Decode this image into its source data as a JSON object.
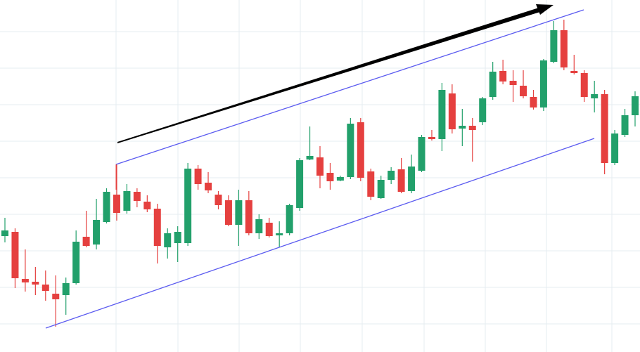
{
  "chart_data": {
    "type": "candlestick",
    "up_color": "#22a06b",
    "down_color": "#e5403f",
    "ylim": [
      0,
      501
    ],
    "yticks": [
      40,
      92,
      144,
      196,
      248,
      300,
      352,
      404,
      456
    ],
    "grid": true,
    "open": [
      165,
      171,
      104,
      100,
      96,
      83,
      81,
      98,
      164,
      153,
      185,
      224,
      201,
      228,
      214,
      204,
      149,
      155,
      155,
      261,
      241,
      224,
      216,
      181,
      216,
      169,
      184,
      166,
      169,
      205,
      274,
      277,
      255,
      244,
      249,
      327,
      257,
      219,
      245,
      260,
      229,
      258,
      306,
      303,
      368,
      318,
      322,
      327,
      363,
      400,
      386,
      379,
      363,
      348,
      413,
      458,
      400,
      397,
      361,
      367,
      269,
      309,
      337
    ],
    "high": [
      191,
      176,
      146,
      121,
      116,
      109,
      106,
      173,
      201,
      218,
      233,
      267,
      239,
      233,
      223,
      211,
      176,
      179,
      269,
      266,
      256,
      229,
      223,
      231,
      229,
      196,
      191,
      186,
      211,
      276,
      321,
      293,
      269,
      251,
      333,
      333,
      261,
      251,
      263,
      276,
      281,
      309,
      316,
      383,
      381,
      346,
      333,
      363,
      413,
      416,
      401,
      401,
      373,
      417,
      471,
      473,
      423,
      401,
      386,
      373,
      316,
      346,
      371
    ],
    "low": [
      156,
      91,
      86,
      81,
      73,
      36,
      53,
      96,
      149,
      146,
      183,
      187,
      197,
      206,
      199,
      126,
      133,
      128,
      151,
      231,
      226,
      203,
      179,
      151,
      166,
      161,
      163,
      149,
      166,
      201,
      273,
      233,
      231,
      243,
      246,
      243,
      216,
      218,
      239,
      226,
      226,
      256,
      301,
      286,
      311,
      293,
      271,
      323,
      359,
      381,
      356,
      361,
      345,
      343,
      411,
      401,
      395,
      356,
      341,
      253,
      266,
      306,
      321
    ],
    "close": [
      173,
      105,
      99,
      96,
      87,
      75,
      98,
      157,
      151,
      188,
      228,
      198,
      229,
      215,
      203,
      151,
      169,
      171,
      261,
      239,
      230,
      209,
      181,
      216,
      169,
      189,
      165,
      169,
      209,
      273,
      279,
      251,
      243,
      249,
      325,
      248,
      221,
      245,
      258,
      228,
      264,
      306,
      303,
      373,
      317,
      322,
      316,
      361,
      399,
      385,
      380,
      364,
      348,
      415,
      458,
      405,
      397,
      363,
      367,
      269,
      311,
      337,
      364
    ]
  }
}
